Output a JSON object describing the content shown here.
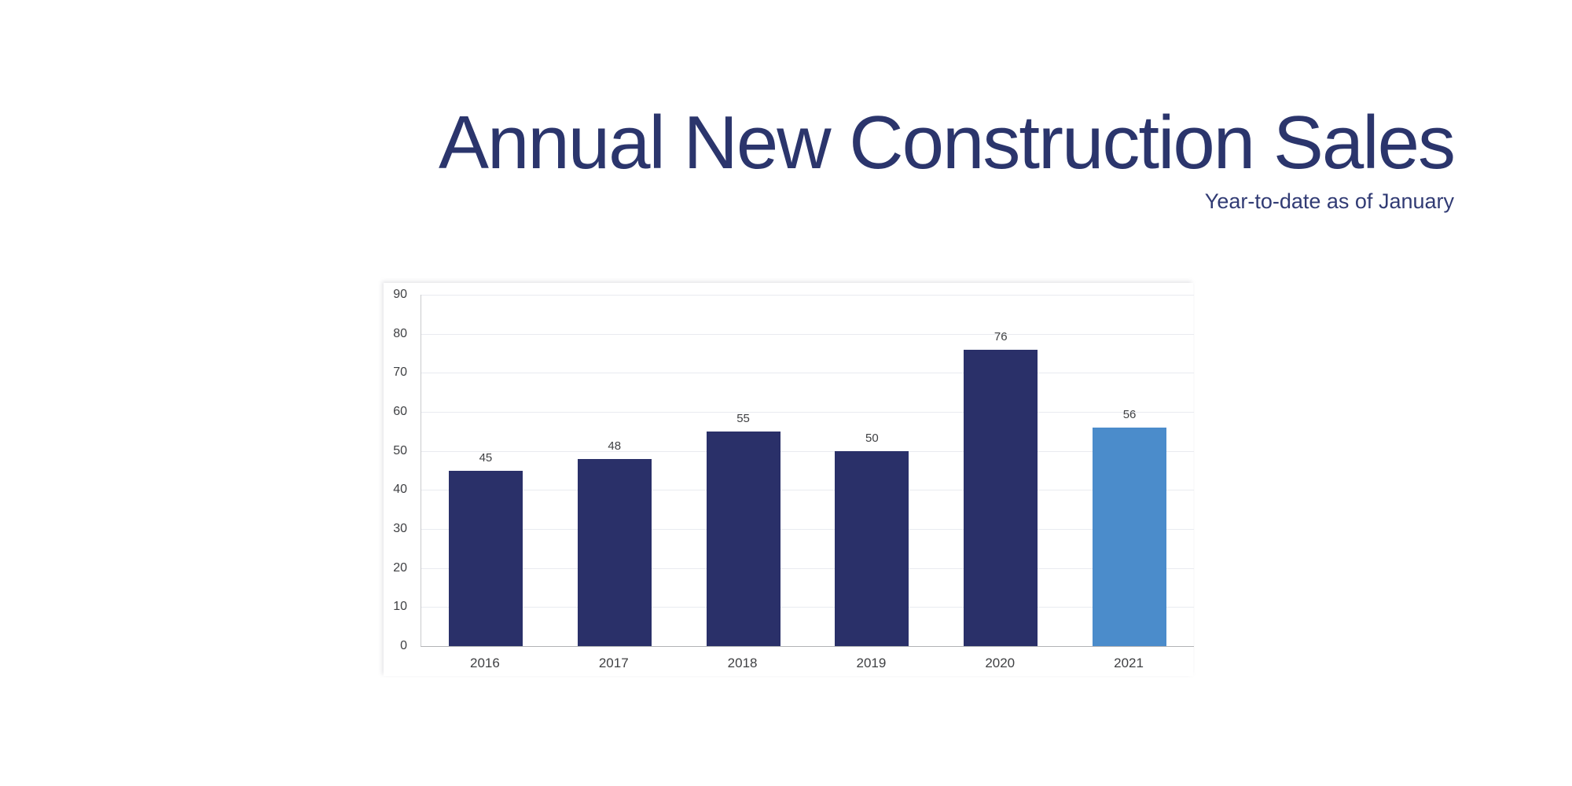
{
  "page": {
    "background": "#ffffff"
  },
  "header": {
    "title": "Annual New Construction Sales",
    "subtitle": "Year-to-date as of January",
    "title_color": "#2b356c",
    "subtitle_color": "#313b74"
  },
  "chart_data": {
    "type": "bar",
    "title": "Annual New Construction Sales",
    "subtitle": "Year-to-date as of January",
    "categories": [
      "2016",
      "2017",
      "2018",
      "2019",
      "2020",
      "2021"
    ],
    "values": [
      45,
      48,
      55,
      50,
      76,
      56
    ],
    "value_labels": [
      "45",
      "48",
      "55",
      "50",
      "76",
      "56"
    ],
    "bar_colors": [
      "#2a3069",
      "#2a3069",
      "#2a3069",
      "#2a3069",
      "#2a3069",
      "#4b8ccb"
    ],
    "highlighted_category": "2021",
    "xlabel": "",
    "ylabel": "",
    "ylim": [
      0,
      90
    ],
    "yticks": [
      0,
      10,
      20,
      30,
      40,
      50,
      60,
      70,
      80,
      90
    ],
    "grid": true,
    "legend": false,
    "colors": {
      "bar_primary": "#2a3069",
      "bar_highlight": "#4b8ccb",
      "gridline": "#e9ebf0",
      "axis_line": "#b2b3b6",
      "tick_label": "#3f4043",
      "value_label": "#3f4043"
    }
  }
}
